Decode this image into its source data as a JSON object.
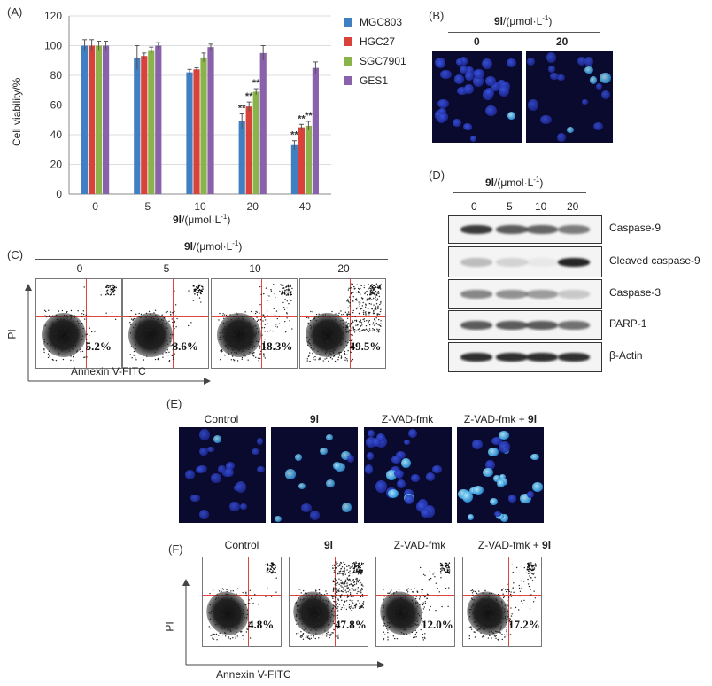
{
  "panels": {
    "a": "(A)",
    "b": "(B)",
    "c": "(C)",
    "d": "(D)",
    "e": "(E)",
    "f": "(F)"
  },
  "chart_data": {
    "type": "bar",
    "categories": [
      "0",
      "5",
      "10",
      "20",
      "40"
    ],
    "series": [
      {
        "name": "MGC803",
        "color": "#3f7fc2",
        "values": [
          100,
          92,
          82,
          49,
          33
        ],
        "errors": [
          4,
          8,
          2,
          5,
          3
        ]
      },
      {
        "name": "HGC27",
        "color": "#d9413b",
        "values": [
          100,
          93,
          84,
          59,
          45
        ],
        "errors": [
          4,
          2,
          1,
          3,
          2
        ]
      },
      {
        "name": "SGC7901",
        "color": "#8ab34a",
        "values": [
          100,
          97,
          92,
          69,
          46
        ],
        "errors": [
          3,
          2,
          3,
          2,
          3
        ]
      },
      {
        "name": "GES1",
        "color": "#8a62ab",
        "values": [
          100,
          100,
          99,
          95,
          85
        ],
        "errors": [
          3,
          2,
          2,
          5,
          4
        ]
      }
    ],
    "significance": {
      "label": "**",
      "marks": [
        [
          3,
          0
        ],
        [
          3,
          1
        ],
        [
          3,
          2
        ],
        [
          4,
          0
        ],
        [
          4,
          1
        ],
        [
          4,
          2
        ]
      ]
    },
    "ylabel": "Cell viability/%",
    "xlabel_bold": "9l",
    "xlabel_unit": "/(μmol·L",
    "xlabel_sup": "-1",
    "xlabel_close": ")",
    "ylim": [
      0,
      120
    ],
    "yticks": [
      0,
      20,
      40,
      60,
      80,
      100,
      120
    ],
    "grid": true,
    "legend": "right"
  },
  "panel_b": {
    "header_bold": "9l",
    "header_unit": "/(μmol·L",
    "header_sup": "-1",
    "header_close": ")",
    "conc": [
      "0",
      "20"
    ]
  },
  "panel_c": {
    "header_bold": "9l",
    "header_unit": "/(μmol·L",
    "header_sup": "-1",
    "header_close": ")",
    "conc": [
      "0",
      "5",
      "10",
      "20"
    ],
    "percent": [
      "5.2%",
      "8.6%",
      "18.3%",
      "49.5%"
    ],
    "ylabel": "PI",
    "xlabel": "Annexin V-FITC"
  },
  "panel_d": {
    "header_bold": "9l",
    "header_unit": "/(μmol·L",
    "header_sup": "-1",
    "header_close": ")",
    "conc": [
      "0",
      "5",
      "10",
      "20"
    ],
    "proteins": [
      "Caspase-9",
      "Cleaved caspase-9",
      "Caspase-3",
      "PARP-1",
      "β-Actin"
    ]
  },
  "panel_e": {
    "titles": [
      "Control",
      "9l",
      "Z-VAD-fmk",
      "Z-VAD-fmk + ",
      "9l"
    ]
  },
  "panel_f": {
    "titles": [
      "Control",
      "9l",
      "Z-VAD-fmk",
      "Z-VAD-fmk + ",
      "9l"
    ],
    "percent": [
      "4.8%",
      "47.8%",
      "12.0%",
      "17.2%"
    ],
    "ylabel": "PI",
    "xlabel": "Annexin V-FITC"
  }
}
